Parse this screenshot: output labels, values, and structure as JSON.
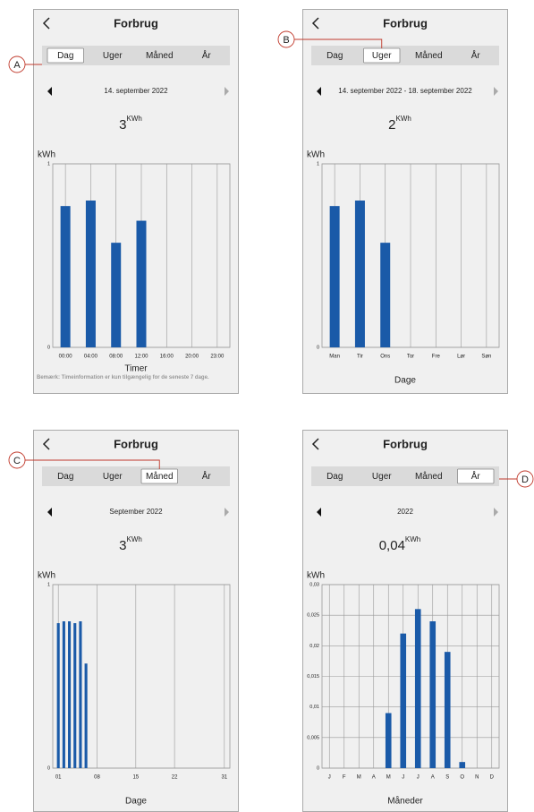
{
  "panels": [
    {
      "title": "Forbrug",
      "tabs": [
        "Dag",
        "Uger",
        "Måned",
        "År"
      ],
      "active": 0,
      "callout": "A",
      "date": "14. september 2022",
      "total": "3",
      "unit": "KWh",
      "chart_data": {
        "type": "bar",
        "ylabel": "kWh",
        "xlabel": "Timer",
        "note": "Bemærk: Timeinformation er kun tilgængelig for de seneste 7 dage.",
        "categories": [
          "00:00",
          "04:00",
          "08:00",
          "12:00",
          "16:00",
          "20:00",
          "23:00"
        ],
        "values": [
          0.77,
          0.8,
          0.57,
          0.69,
          null,
          null,
          null
        ],
        "color": "#1a5aa8",
        "ylim": [
          0,
          1
        ],
        "yticks": [
          0,
          1
        ],
        "grid": true
      }
    },
    {
      "title": "Forbrug",
      "tabs": [
        "Dag",
        "Uger",
        "Måned",
        "År"
      ],
      "active": 1,
      "callout": "B",
      "date": "14. september 2022 - 18. september 2022",
      "total": "2",
      "unit": "KWh",
      "chart_data": {
        "type": "bar",
        "ylabel": "kWh",
        "xlabel": "Dage",
        "categories": [
          "Man",
          "Tir",
          "Ons",
          "Tor",
          "Fre",
          "Lør",
          "Søn"
        ],
        "values": [
          0.77,
          0.8,
          0.57,
          null,
          null,
          null,
          null
        ],
        "color": "#1a5aa8",
        "ylim": [
          0,
          1
        ],
        "yticks": [
          0,
          1
        ],
        "grid": true
      }
    },
    {
      "title": "Forbrug",
      "tabs": [
        "Dag",
        "Uger",
        "Måned",
        "År"
      ],
      "active": 2,
      "callout": "C",
      "date": "September 2022",
      "total": "3",
      "unit": "KWh",
      "chart_data": {
        "type": "bar",
        "ylabel": "kWh",
        "xlabel": "Dage",
        "x": [
          1,
          2,
          3,
          4,
          5,
          6
        ],
        "values": [
          0.79,
          0.8,
          0.8,
          0.79,
          0.8,
          0.57
        ],
        "color": "#1a5aa8",
        "xlim": [
          0,
          32
        ],
        "xticks": [
          {
            "value": 1,
            "label": "01"
          },
          {
            "value": 8,
            "label": "08"
          },
          15,
          22,
          31
        ],
        "ylim": [
          0,
          1
        ],
        "yticks": [
          0,
          1
        ],
        "grid": true
      }
    },
    {
      "title": "Forbrug",
      "tabs": [
        "Dag",
        "Uger",
        "Måned",
        "År"
      ],
      "active": 3,
      "callout": "D",
      "date": "2022",
      "total": "0,04",
      "unit": "KWh",
      "chart_data": {
        "type": "bar",
        "ylabel": "kWh",
        "xlabel": "Måneder",
        "categories": [
          "J",
          "F",
          "M",
          "A",
          "M",
          "J",
          "J",
          "A",
          "S",
          "O",
          "N",
          "D"
        ],
        "values": [
          null,
          null,
          null,
          null,
          0.009,
          0.022,
          0.026,
          0.024,
          0.019,
          0.001,
          null,
          null
        ],
        "color": "#1a5aa8",
        "ylim": [
          0,
          0.03
        ],
        "yticks": [
          0,
          {
            "value": 0.005,
            "label": "0,005"
          },
          {
            "value": 0.01,
            "label": "0,01"
          },
          {
            "value": 0.015,
            "label": "0,015"
          },
          {
            "value": 0.02,
            "label": "0,02"
          },
          {
            "value": 0.025,
            "label": "0,025"
          },
          {
            "value": 0.03,
            "label": "0,03"
          }
        ],
        "grid": true
      }
    }
  ]
}
